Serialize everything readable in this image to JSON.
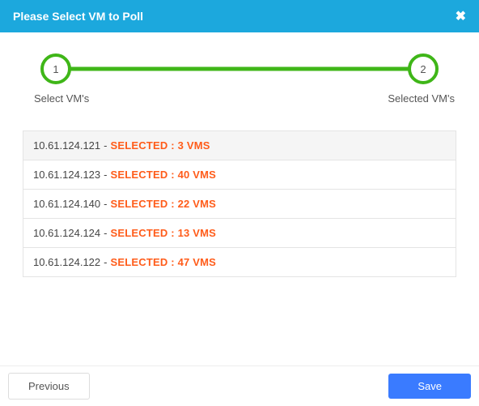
{
  "header": {
    "title": "Please Select VM to Poll",
    "close_glyph": "✖"
  },
  "stepper": {
    "steps": [
      {
        "num": "1",
        "label": "Select VM's"
      },
      {
        "num": "2",
        "label": "Selected VM's"
      }
    ],
    "line_color": "#3fb618",
    "circle_border_color": "#3fb618"
  },
  "vm_list": {
    "separator": " - ",
    "selected_prefix": "SELECTED : ",
    "selected_suffix": " VMS",
    "selected_color": "#ff5c1a",
    "rows": [
      {
        "ip": "10.61.124.121",
        "count": "3"
      },
      {
        "ip": "10.61.124.123",
        "count": "40"
      },
      {
        "ip": "10.61.124.140",
        "count": "22"
      },
      {
        "ip": "10.61.124.124",
        "count": "13"
      },
      {
        "ip": "10.61.124.122",
        "count": "47"
      }
    ]
  },
  "footer": {
    "previous_label": "Previous",
    "save_label": "Save"
  },
  "colors": {
    "header_bg": "#1ca8dd",
    "save_bg": "#3a7bff",
    "border": "#e4e4e4"
  }
}
